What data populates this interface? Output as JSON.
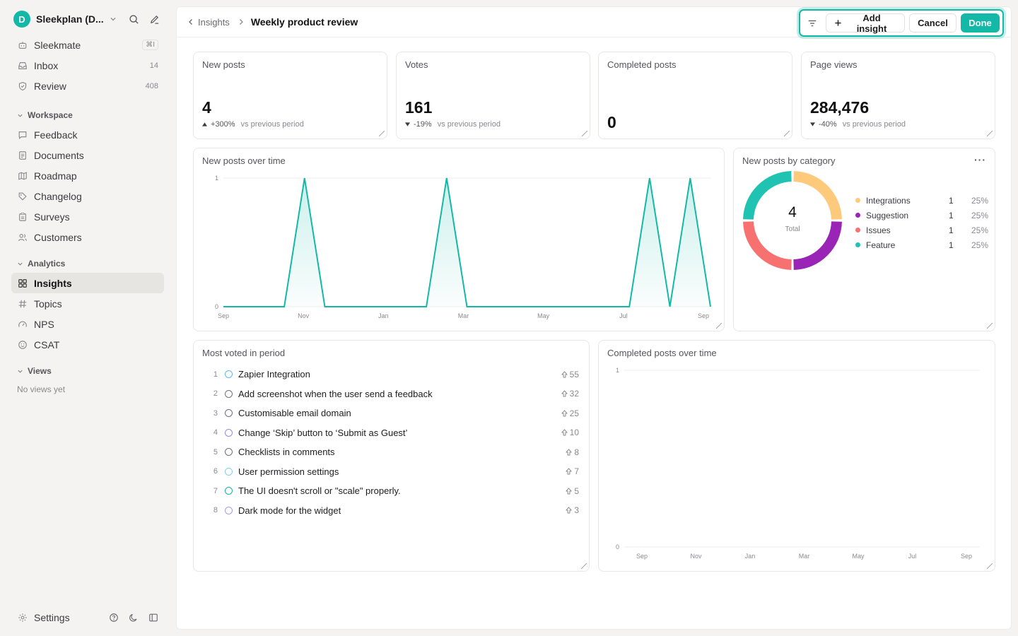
{
  "workspace": {
    "initial": "D",
    "name": "Sleekplan (D..."
  },
  "nav_top": [
    {
      "key": "sleekmate",
      "label": "Sleekmate",
      "badge": "⌘I",
      "badge_type": "kbd"
    },
    {
      "key": "inbox",
      "label": "Inbox",
      "badge": "14",
      "badge_type": "count"
    },
    {
      "key": "review",
      "label": "Review",
      "badge": "408",
      "badge_type": "count"
    }
  ],
  "sections": {
    "workspace": {
      "title": "Workspace",
      "items": [
        "Feedback",
        "Documents",
        "Roadmap",
        "Changelog",
        "Surveys",
        "Customers"
      ]
    },
    "analytics": {
      "title": "Analytics",
      "items": [
        "Insights",
        "Topics",
        "NPS",
        "CSAT"
      ],
      "active": "Insights"
    },
    "views": {
      "title": "Views",
      "empty": "No views yet"
    }
  },
  "footer": {
    "settings_label": "Settings"
  },
  "breadcrumb": {
    "parent": "Insights",
    "current": "Weekly product review"
  },
  "toolbar": {
    "add_label": "Add insight",
    "cancel_label": "Cancel",
    "done_label": "Done"
  },
  "metrics": [
    {
      "title": "New posts",
      "value": "4",
      "delta": "+300%",
      "direction": "up",
      "vs": "vs previous period"
    },
    {
      "title": "Votes",
      "value": "161",
      "delta": "-19%",
      "direction": "down",
      "vs": "vs previous period"
    },
    {
      "title": "Completed posts",
      "value": "0",
      "delta": "",
      "direction": "none",
      "vs": ""
    },
    {
      "title": "Page views",
      "value": "284,476",
      "delta": "-40%",
      "direction": "down",
      "vs": "vs previous period"
    }
  ],
  "new_posts_chart_title": "New posts over time",
  "category_chart_title": "New posts by category",
  "most_voted_title": "Most voted in period",
  "completed_chart_title": "Completed posts over time",
  "colors": {
    "accent": "#14b8a6",
    "integrations": "#fdca7b",
    "suggestion": "#9a24b5",
    "issues": "#f87171",
    "feature": "#20c3b2"
  },
  "chart_data": [
    {
      "type": "area",
      "title": "New posts over time",
      "x_ticks": [
        "Sep",
        "Nov",
        "Jan",
        "Mar",
        "May",
        "Jul",
        "Sep"
      ],
      "y_ticks": [
        "1",
        "0"
      ],
      "ylim": [
        0,
        1
      ],
      "series": [
        {
          "values": [
            0,
            0,
            0,
            0,
            1,
            0,
            0,
            0,
            0,
            0,
            0,
            1,
            0,
            0,
            0,
            0,
            0,
            0,
            0,
            0,
            0,
            1,
            0,
            1,
            0
          ]
        }
      ]
    },
    {
      "type": "pie",
      "title": "New posts by category",
      "total": "4",
      "total_label": "Total",
      "slices": [
        {
          "name": "Integrations",
          "value": 1,
          "percent": "25%",
          "color_key": "integrations"
        },
        {
          "name": "Suggestion",
          "value": 1,
          "percent": "25%",
          "color_key": "suggestion"
        },
        {
          "name": "Issues",
          "value": 1,
          "percent": "25%",
          "color_key": "issues"
        },
        {
          "name": "Feature",
          "value": 1,
          "percent": "25%",
          "color_key": "feature"
        }
      ]
    },
    {
      "type": "area",
      "title": "Completed posts over time",
      "x_ticks": [
        "Sep",
        "Nov",
        "Jan",
        "Mar",
        "May",
        "Jul",
        "Sep"
      ],
      "y_ticks": [
        "1",
        "0"
      ],
      "ylim": [
        0,
        1
      ],
      "series": []
    }
  ],
  "most_voted": [
    {
      "rank": "1",
      "title": "Zapier Integration",
      "votes": "55",
      "status_color": "#60b8f0"
    },
    {
      "rank": "2",
      "title": "Add screenshot when the user send a feedback",
      "votes": "32",
      "status_color": "#6f6f80"
    },
    {
      "rank": "3",
      "title": "Customisable email domain",
      "votes": "25",
      "status_color": "#6f6f80"
    },
    {
      "rank": "4",
      "title": "Change ‘Skip’ button to ‘Submit as Guest’",
      "votes": "10",
      "status_color": "#8f8fe0"
    },
    {
      "rank": "5",
      "title": "Checklists in comments",
      "votes": "8",
      "status_color": "#6f6f80"
    },
    {
      "rank": "6",
      "title": "User permission settings",
      "votes": "7",
      "status_color": "#7fd3e6"
    },
    {
      "rank": "7",
      "title": "The UI doesn't scroll or \"scale\" properly.",
      "votes": "5",
      "status_color": "#14b8a6"
    },
    {
      "rank": "8",
      "title": "Dark mode for the widget",
      "votes": "3",
      "status_color": "#a89be8"
    }
  ]
}
